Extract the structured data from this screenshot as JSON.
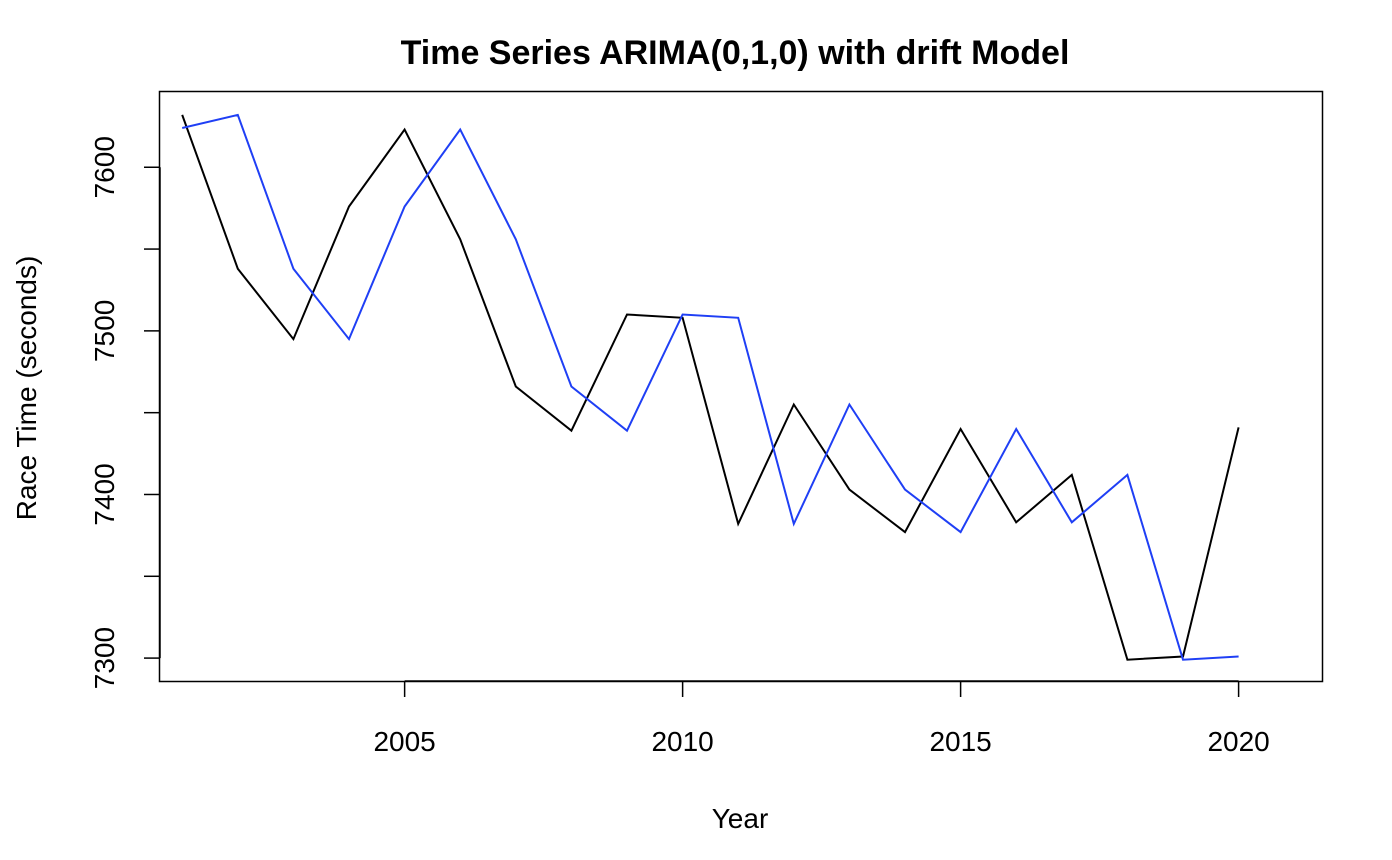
{
  "chart_data": {
    "type": "line",
    "title": "Time Series ARIMA(0,1,0) with drift Model",
    "xlabel": "Year",
    "ylabel": "Race Time (seconds)",
    "xlim": [
      2000.6,
      2021.5
    ],
    "ylim": [
      7286,
      7646
    ],
    "x_ticks": [
      2005,
      2010,
      2015,
      2020
    ],
    "y_ticks": [
      7300,
      7350,
      7400,
      7450,
      7500,
      7550,
      7600
    ],
    "y_tick_labels": [
      {
        "value": 7300,
        "label": "7300"
      },
      {
        "value": 7400,
        "label": "7400"
      },
      {
        "value": 7500,
        "label": "7500"
      },
      {
        "value": 7600,
        "label": "7600"
      }
    ],
    "x": [
      2001,
      2002,
      2003,
      2004,
      2005,
      2006,
      2007,
      2008,
      2009,
      2010,
      2011,
      2012,
      2013,
      2014,
      2015,
      2016,
      2017,
      2018,
      2019,
      2020
    ],
    "series": [
      {
        "color": "#000000",
        "values": [
          7632,
          7538,
          7495,
          7576,
          7623,
          7556,
          7466,
          7439,
          7510,
          7508,
          7382,
          7455,
          7403,
          7377,
          7440,
          7383,
          7412,
          7299,
          7301,
          7441
        ]
      },
      {
        "color": "#1f3ff5",
        "values": [
          7624,
          7632,
          7538,
          7495,
          7576,
          7623,
          7556,
          7466,
          7439,
          7510,
          7508,
          7382,
          7455,
          7403,
          7377,
          7440,
          7383,
          7412,
          7299,
          7301
        ]
      }
    ],
    "grid": false,
    "legend": "none"
  }
}
